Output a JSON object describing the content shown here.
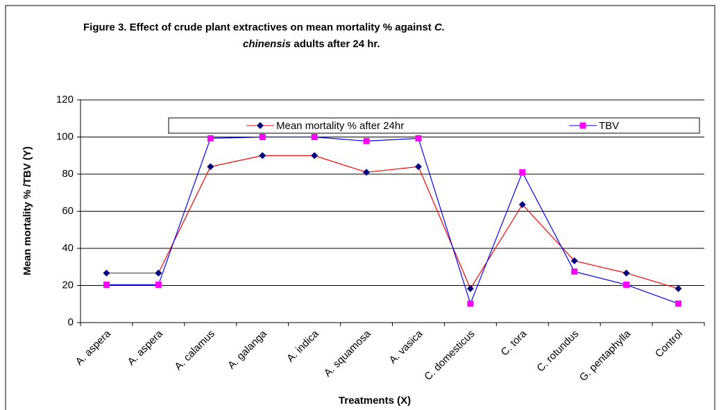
{
  "chart_data": {
    "type": "line",
    "title": [
      "Figure 3.  Effect of crude plant extractives on mean mortality % against",
      "C.",
      "chinensis",
      "adults after 24 hr."
    ],
    "x_label": "Treatments (X)",
    "y_label": "Mean mortality % /TBV (Y)",
    "categories": [
      "A. aspera",
      "A. aspera",
      "A. calamus",
      "A. galanga",
      "A. indica",
      "A. squamosa",
      "A. vasica",
      "C. domesticus",
      "C. tora",
      "C. rotundus",
      "G. pentaphylla",
      "Control"
    ],
    "series": [
      {
        "name": "Mean mortality % after 24hr",
        "color": "#ff0000",
        "marker_color": "#000080",
        "values": [
          26.7,
          26.7,
          84,
          90,
          90,
          81,
          84,
          18.3,
          63.6,
          33.3,
          26.7,
          18.3
        ]
      },
      {
        "name": "TBV",
        "color": "#0000ff",
        "marker_color": "#ff00ff",
        "values": [
          20.4,
          20.4,
          99.3,
          100,
          100,
          97.8,
          99.3,
          10.2,
          81,
          27.5,
          20.4,
          10.2
        ]
      }
    ],
    "ylim": [
      0,
      120
    ],
    "yticks": [
      0,
      20,
      40,
      60,
      80,
      100,
      120
    ],
    "grid": true
  }
}
